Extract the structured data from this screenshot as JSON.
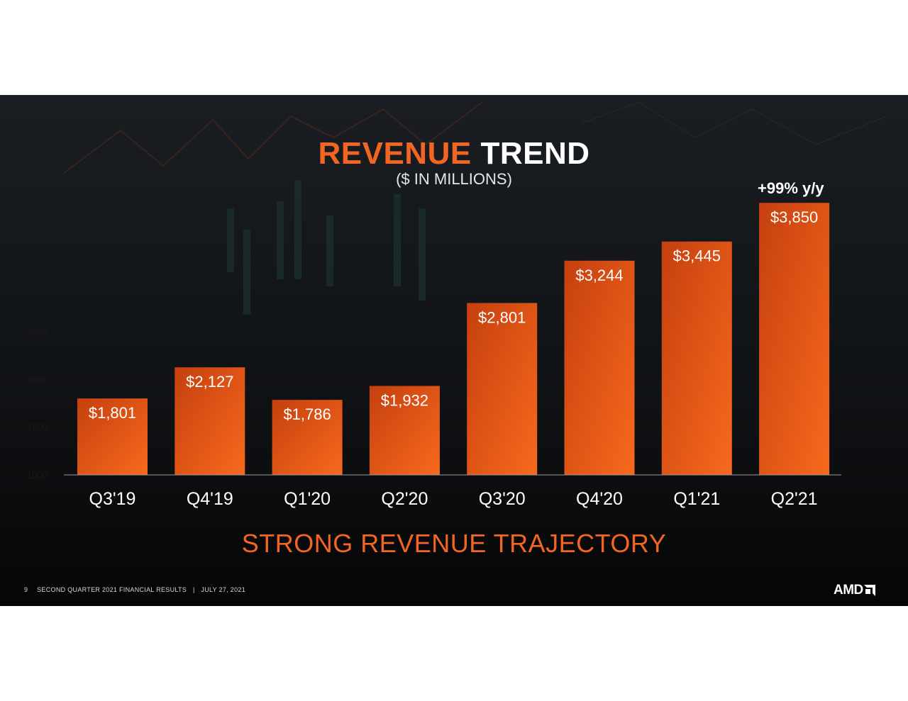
{
  "title": {
    "accent": "REVENUE",
    "rest": "TREND"
  },
  "subtitle": "($ IN MILLIONS)",
  "callout": "+99% y/y",
  "tagline": "STRONG REVENUE TRAJECTORY",
  "footer": {
    "page": "9",
    "text": "SECOND QUARTER 2021 FINANCIAL RESULTS",
    "separator": "|",
    "date": "JULY 27, 2021"
  },
  "logo": {
    "text": "AMD",
    "icon": "amd-arrow-icon"
  },
  "colors": {
    "accent": "#f26522",
    "bar_dark": "#c5400f",
    "bar_light": "#f7691d",
    "background": "#121518"
  },
  "chart_data": {
    "type": "bar",
    "categories": [
      "Q3'19",
      "Q4'19",
      "Q1'20",
      "Q2'20",
      "Q3'20",
      "Q4'20",
      "Q1'21",
      "Q2'21"
    ],
    "values": [
      1801,
      2127,
      1786,
      1932,
      2801,
      3244,
      3445,
      3850
    ],
    "data_labels": [
      "$1,801",
      "$2,127",
      "$1,786",
      "$1,932",
      "$2,801",
      "$3,244",
      "$3,445",
      "$3,850"
    ],
    "yticks": [
      1000,
      1500,
      2000,
      2500,
      3000,
      3500,
      4000
    ],
    "ylim": [
      1000,
      4000
    ],
    "grid": false
  }
}
